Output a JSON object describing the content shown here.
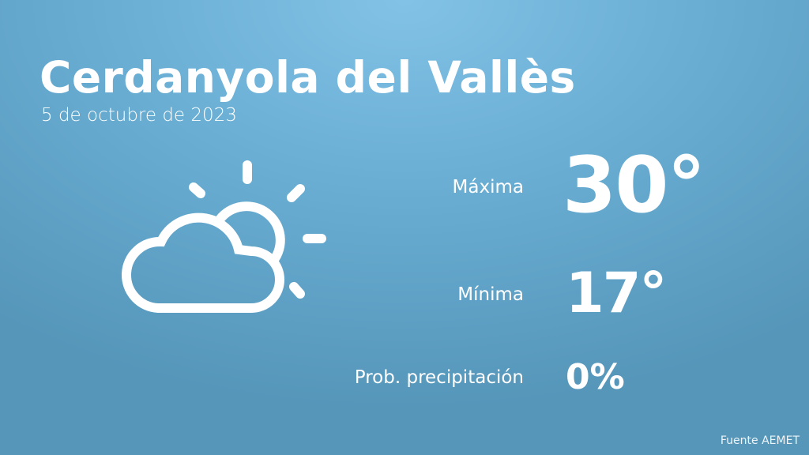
{
  "header": {
    "city": "Cerdanyola del Vallès",
    "date": "5 de octubre de 2023"
  },
  "weather": {
    "icon": "partly-cloudy-icon",
    "max_label": "Máxima",
    "max_value": "30°",
    "min_label": "Mínima",
    "min_value": "17°",
    "precip_label": "Prob. precipitación",
    "precip_value": "0%"
  },
  "footer": {
    "source": "Fuente AEMET"
  },
  "colors": {
    "background_top": "#82c2e6",
    "background_bottom": "#5596b9",
    "text": "#ffffff"
  }
}
